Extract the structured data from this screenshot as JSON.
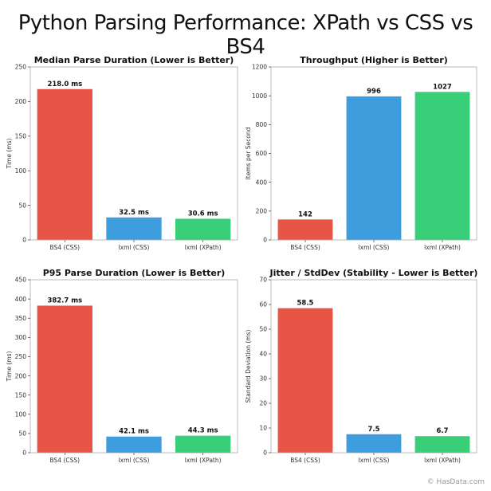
{
  "title": "Python Parsing Performance: XPath vs CSS vs BS4",
  "credit": "© HasData.com",
  "chart_data": [
    {
      "type": "bar",
      "title": "Median Parse Duration (Lower is Better)",
      "xlabel": "",
      "ylabel": "Time (ms)",
      "categories": [
        "BS4 (CSS)",
        "lxml (CSS)",
        "lxml (XPath)"
      ],
      "values": [
        218.0,
        32.5,
        30.6
      ],
      "value_labels": [
        "218.0 ms",
        "32.5 ms",
        "30.6 ms"
      ],
      "colors": [
        "#e74c3c",
        "#3498db",
        "#2ecc71"
      ],
      "ylim": [
        0,
        250
      ],
      "yticks": [
        0,
        50,
        100,
        150,
        200,
        250
      ],
      "grid": false
    },
    {
      "type": "bar",
      "title": "Throughput (Higher is Better)",
      "xlabel": "",
      "ylabel": "Items per Second",
      "categories": [
        "BS4 (CSS)",
        "lxml (CSS)",
        "lxml (XPath)"
      ],
      "values": [
        142,
        996,
        1027
      ],
      "value_labels": [
        "142",
        "996",
        "1027"
      ],
      "colors": [
        "#e74c3c",
        "#3498db",
        "#2ecc71"
      ],
      "ylim": [
        0,
        1200
      ],
      "yticks": [
        0,
        200,
        400,
        600,
        800,
        1000,
        1200
      ],
      "grid": false
    },
    {
      "type": "bar",
      "title": "P95 Parse Duration (Lower is Better)",
      "xlabel": "",
      "ylabel": "Time (ms)",
      "categories": [
        "BS4 (CSS)",
        "lxml (CSS)",
        "lxml (XPath)"
      ],
      "values": [
        382.7,
        42.1,
        44.3
      ],
      "value_labels": [
        "382.7 ms",
        "42.1 ms",
        "44.3 ms"
      ],
      "colors": [
        "#e74c3c",
        "#3498db",
        "#2ecc71"
      ],
      "ylim": [
        0,
        450
      ],
      "yticks": [
        0,
        50,
        100,
        150,
        200,
        250,
        300,
        350,
        400,
        450
      ],
      "grid": false
    },
    {
      "type": "bar",
      "title": "Jitter / StdDev (Stability - Lower is Better)",
      "xlabel": "",
      "ylabel": "Standard Deviation (ms)",
      "categories": [
        "BS4 (CSS)",
        "lxml (CSS)",
        "lxml (XPath)"
      ],
      "values": [
        58.5,
        7.5,
        6.7
      ],
      "value_labels": [
        "58.5",
        "7.5",
        "6.7"
      ],
      "colors": [
        "#e74c3c",
        "#3498db",
        "#2ecc71"
      ],
      "ylim": [
        0,
        70
      ],
      "yticks": [
        0,
        10,
        20,
        30,
        40,
        50,
        60,
        70
      ],
      "grid": false
    }
  ]
}
